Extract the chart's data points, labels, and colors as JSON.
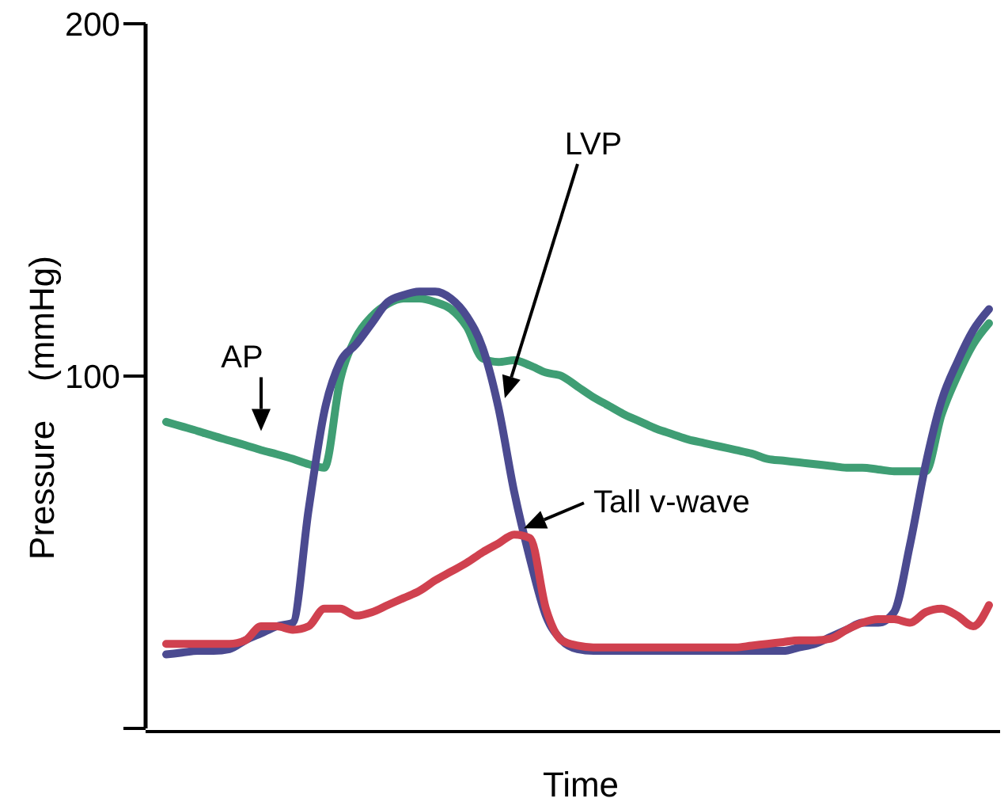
{
  "chart_data": {
    "type": "line",
    "xlabel": "Time",
    "ylabel": "Pressure    (mmHg)",
    "categories": [
      null,
      null,
      null,
      null,
      null,
      null,
      null,
      null,
      null,
      null,
      null,
      null,
      null,
      null,
      null,
      null,
      null,
      null,
      null,
      null,
      null,
      null,
      null,
      null,
      null,
      null,
      null,
      null,
      null,
      null,
      null,
      null,
      null,
      null,
      null,
      null,
      null,
      null,
      null,
      null,
      null,
      null,
      null,
      null,
      null,
      null,
      null,
      null,
      null,
      null,
      null,
      null,
      null
    ],
    "ylim": [
      0,
      200
    ],
    "yticks": [
      {
        "value": 0,
        "label": null
      },
      100,
      200
    ],
    "grid": false,
    "line_style": "solid",
    "series": [
      {
        "name": "AP",
        "color": "#3f9e74",
        "values": [
          87,
          85.7,
          84.4,
          83,
          81.7,
          80.4,
          79,
          77.8,
          76.5,
          75,
          74,
          99,
          111,
          117,
          120.5,
          122,
          122,
          121,
          119,
          114,
          105,
          104,
          104.5,
          103,
          101,
          100,
          97,
          94,
          91.5,
          89,
          87,
          85,
          83.5,
          82,
          81,
          80,
          79,
          78,
          76.5,
          76,
          75.5,
          75,
          74.5,
          74,
          74,
          73.5,
          73,
          73,
          73,
          89,
          100,
          109,
          115
        ]
      },
      {
        "name": "LVP",
        "color": "#4b4a90",
        "values": [
          21,
          21.5,
          22,
          22,
          22.5,
          25,
          27,
          29,
          30,
          62,
          90,
          104,
          109,
          115,
          121,
          123,
          124,
          124,
          122,
          117,
          108,
          91,
          67,
          48,
          32,
          25,
          22.5,
          22,
          22,
          22,
          22,
          22,
          22,
          22,
          22,
          22,
          22,
          22,
          22,
          22,
          23,
          24,
          26,
          28,
          30,
          30,
          33,
          52,
          75,
          93,
          104,
          113,
          119
        ]
      },
      {
        "color": "#d0414f",
        "values": [
          24,
          24,
          24,
          24,
          24,
          25,
          29,
          29,
          28,
          29,
          34,
          34,
          32,
          33,
          35,
          37,
          39,
          42,
          44.5,
          47,
          50,
          52.5,
          55,
          54,
          34,
          25,
          23.5,
          23,
          23,
          23,
          23,
          23,
          23,
          23,
          23,
          23,
          23,
          23.5,
          24,
          24.5,
          25,
          25,
          25.5,
          28,
          30,
          31,
          31,
          30,
          33,
          34,
          32,
          29,
          35
        ]
      }
    ],
    "annotations": [
      "Tall v-wave"
    ]
  }
}
